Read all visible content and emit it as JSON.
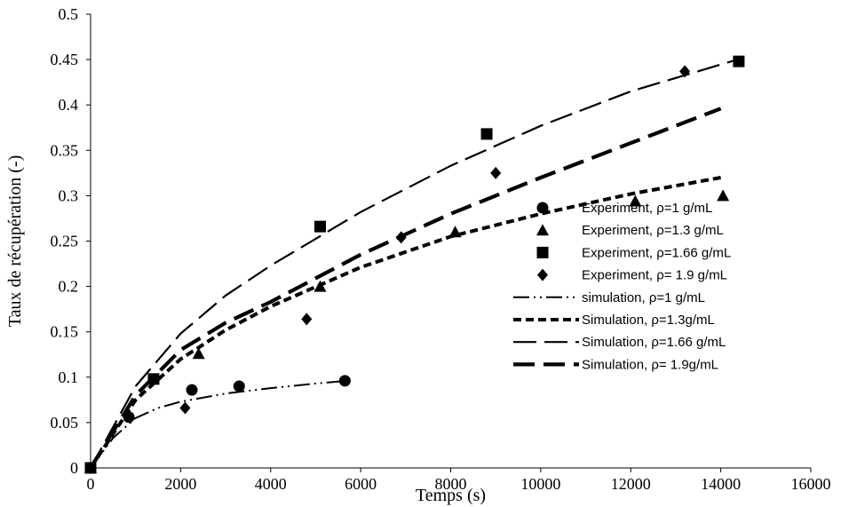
{
  "chart_data": {
    "type": "scatter",
    "xlabel": "Temps (s)",
    "ylabel": "Taux de récupération (-)",
    "xlim": [
      0,
      16000
    ],
    "ylim": [
      0,
      0.5
    ],
    "x_ticks": [
      "0",
      "2000",
      "4000",
      "6000",
      "8000",
      "10000",
      "12000",
      "14000",
      "16000"
    ],
    "y_ticks": [
      "0",
      "0.05",
      "0.1",
      "0.15",
      "0.2",
      "0.25",
      "0.3",
      "0.35",
      "0.4",
      "0.45",
      "0.5"
    ],
    "grid": false,
    "legend_position": "right",
    "series": [
      {
        "name": "Experiment, ρ=1 g/mL",
        "kind": "marker",
        "marker": "circle",
        "points": [
          [
            0,
            0.0
          ],
          [
            850,
            0.056
          ],
          [
            2250,
            0.086
          ],
          [
            3300,
            0.09
          ],
          [
            5650,
            0.096
          ]
        ]
      },
      {
        "name": "Experiment, ρ=1.3 g/mL",
        "kind": "marker",
        "marker": "triangle",
        "points": [
          [
            0,
            0.0
          ],
          [
            2400,
            0.126
          ],
          [
            5100,
            0.2
          ],
          [
            8100,
            0.26
          ],
          [
            12100,
            0.294
          ],
          [
            14050,
            0.3
          ]
        ]
      },
      {
        "name": "Experiment, ρ=1.66 g/mL",
        "kind": "marker",
        "marker": "square",
        "points": [
          [
            0,
            0.0
          ],
          [
            1400,
            0.098
          ],
          [
            5100,
            0.266
          ],
          [
            8800,
            0.368
          ],
          [
            14400,
            0.448
          ]
        ]
      },
      {
        "name": "Experiment, ρ= 1.9 g/mL",
        "kind": "marker",
        "marker": "diamond",
        "points": [
          [
            0,
            0.0
          ],
          [
            2100,
            0.066
          ],
          [
            4800,
            0.164
          ],
          [
            6900,
            0.254
          ],
          [
            9000,
            0.325
          ],
          [
            13200,
            0.437
          ]
        ]
      },
      {
        "name": "simulation, ρ=1 g/mL",
        "kind": "line",
        "dash": "dashdotdot",
        "points": [
          [
            0,
            0.0
          ],
          [
            500,
            0.033
          ],
          [
            1000,
            0.055
          ],
          [
            1500,
            0.066
          ],
          [
            2000,
            0.073
          ],
          [
            3000,
            0.082
          ],
          [
            4000,
            0.088
          ],
          [
            5000,
            0.093
          ],
          [
            5700,
            0.096
          ]
        ]
      },
      {
        "name": "Simulation, ρ=1.3g/mL",
        "kind": "line",
        "dash": "shortthick",
        "points": [
          [
            0,
            0.0
          ],
          [
            1000,
            0.075
          ],
          [
            2000,
            0.12
          ],
          [
            3000,
            0.152
          ],
          [
            4000,
            0.178
          ],
          [
            6000,
            0.221
          ],
          [
            8000,
            0.255
          ],
          [
            10000,
            0.28
          ],
          [
            12000,
            0.302
          ],
          [
            14000,
            0.32
          ]
        ]
      },
      {
        "name": "Simulation, ρ=1.66 g/mL",
        "kind": "line",
        "dash": "long",
        "points": [
          [
            0,
            0.0
          ],
          [
            1000,
            0.09
          ],
          [
            2000,
            0.148
          ],
          [
            3000,
            0.19
          ],
          [
            4000,
            0.223
          ],
          [
            6000,
            0.282
          ],
          [
            8000,
            0.333
          ],
          [
            10000,
            0.377
          ],
          [
            12000,
            0.415
          ],
          [
            14500,
            0.452
          ]
        ]
      },
      {
        "name": "Simulation, ρ= 1.9g/mL",
        "kind": "line",
        "dash": "longthick",
        "points": [
          [
            0,
            0.0
          ],
          [
            1000,
            0.08
          ],
          [
            2000,
            0.13
          ],
          [
            3000,
            0.16
          ],
          [
            4000,
            0.183
          ],
          [
            6000,
            0.235
          ],
          [
            8000,
            0.28
          ],
          [
            10000,
            0.32
          ],
          [
            12000,
            0.358
          ],
          [
            14000,
            0.396
          ]
        ]
      }
    ]
  }
}
